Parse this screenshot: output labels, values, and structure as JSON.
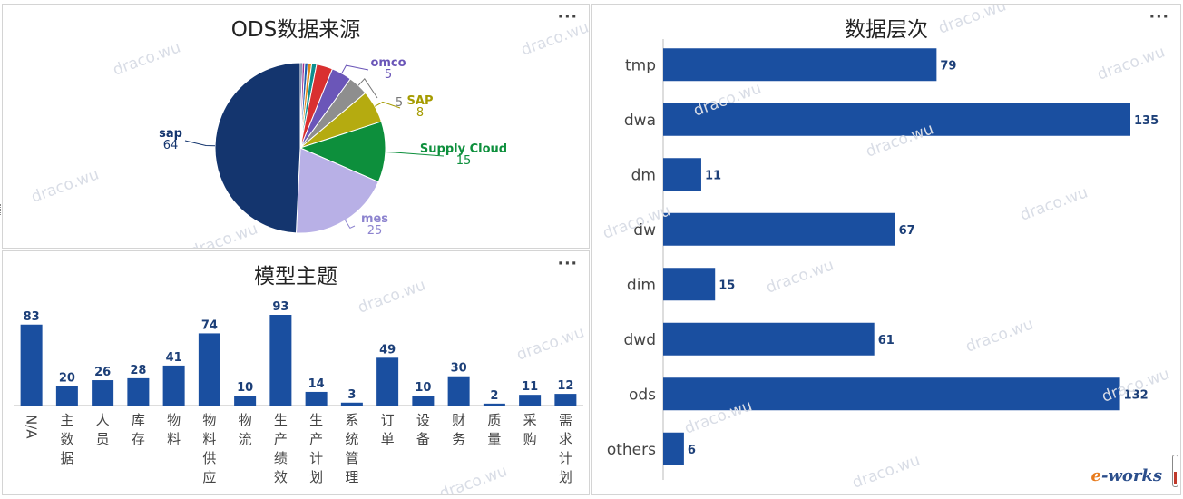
{
  "watermark": "draco.wu",
  "logo": {
    "e": "e",
    "rest": "-works"
  },
  "pie_chart": {
    "more_label": "···",
    "chart_data": {
      "type": "pie",
      "title": "ODS数据来源",
      "slices": [
        {
          "name": "sap",
          "value": 64,
          "color": "#14356e",
          "label_color": "#14356e"
        },
        {
          "name": "mes",
          "value": 25,
          "color": "#b8b0e6",
          "label_color": "#8d84cf"
        },
        {
          "name": "Supply Cloud",
          "value": 15,
          "color": "#0d8f3c",
          "label_color": "#0d8f3c"
        },
        {
          "name": "SAP",
          "value": 8,
          "color": "#b5ab10",
          "label_color": "#a59b00"
        },
        {
          "name": "",
          "value": 5,
          "color": "#8e8e8e",
          "label_color": "#777777"
        },
        {
          "name": "omco",
          "value": 5,
          "color": "#6b56b8",
          "label_color": "#6b56b8"
        },
        {
          "name": "",
          "value": 4,
          "color": "#d93030",
          "label_color": "",
          "unlabeled": true
        },
        {
          "name": "",
          "value": 1.2,
          "color": "#0d8f8f",
          "label_color": "",
          "unlabeled": true
        },
        {
          "name": "",
          "value": 0.9,
          "color": "#e08a1a",
          "label_color": "",
          "unlabeled": true
        },
        {
          "name": "",
          "value": 0.8,
          "color": "#1f5fb0",
          "label_color": "",
          "unlabeled": true
        },
        {
          "name": "",
          "value": 0.6,
          "color": "#9b2f8f",
          "label_color": "",
          "unlabeled": true
        },
        {
          "name": "",
          "value": 0.5,
          "color": "#1b3f80",
          "label_color": "",
          "unlabeled": true
        }
      ]
    }
  },
  "column_chart": {
    "more_label": "···",
    "chart_data": {
      "type": "bar",
      "title": "模型主题",
      "categories": [
        "N/A",
        "主数据",
        "人员",
        "库存",
        "物料",
        "物料供应",
        "物流",
        "生产绩效",
        "生产计划",
        "系统管理",
        "订单",
        "设备",
        "财务",
        "质量",
        "采购",
        "需求计划"
      ],
      "values": [
        83,
        20,
        26,
        28,
        41,
        74,
        10,
        93,
        14,
        3,
        49,
        10,
        30,
        2,
        11,
        12
      ],
      "ylim": [
        0,
        93
      ],
      "color": "#1a4fa0"
    }
  },
  "hbar_chart": {
    "more_label": "···",
    "chart_data": {
      "type": "bar",
      "orientation": "horizontal",
      "title": "数据层次",
      "categories": [
        "tmp",
        "dwa",
        "dm",
        "dw",
        "dim",
        "dwd",
        "ods",
        "others"
      ],
      "values": [
        79,
        135,
        11,
        67,
        15,
        61,
        132,
        6
      ],
      "xlim": [
        0,
        135
      ],
      "color": "#1a4fa0"
    }
  }
}
